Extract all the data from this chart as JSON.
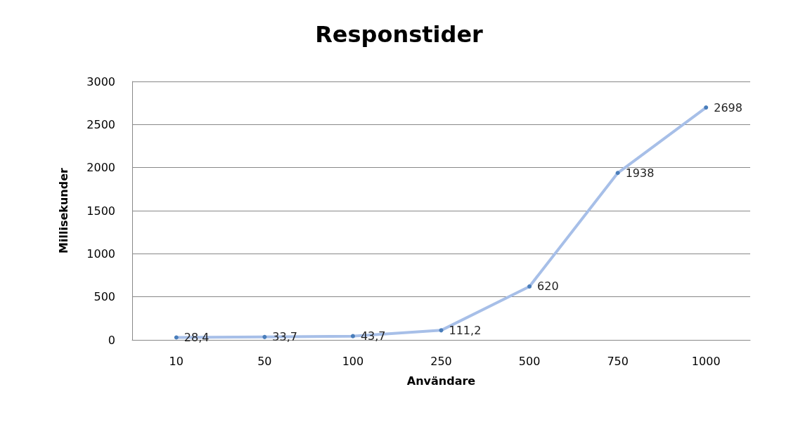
{
  "chart_data": {
    "type": "line",
    "title": "Responstider",
    "xlabel": "Användare",
    "ylabel": "Millisekunder",
    "categories": [
      "10",
      "50",
      "100",
      "250",
      "500",
      "750",
      "1000"
    ],
    "series": [
      {
        "color": "#a7bfe8",
        "values": [
          28.4,
          33.7,
          43.7,
          111.2,
          620,
          1938,
          2698
        ],
        "value_labels": [
          "28,4",
          "33,7",
          "43,7",
          "111,2",
          "620",
          "1938",
          "2698"
        ]
      }
    ],
    "ylim": [
      0,
      3000
    ],
    "yticks": [
      0,
      500,
      1000,
      1500,
      2000,
      2500,
      3000
    ],
    "grid": "y",
    "marker": "circle"
  }
}
